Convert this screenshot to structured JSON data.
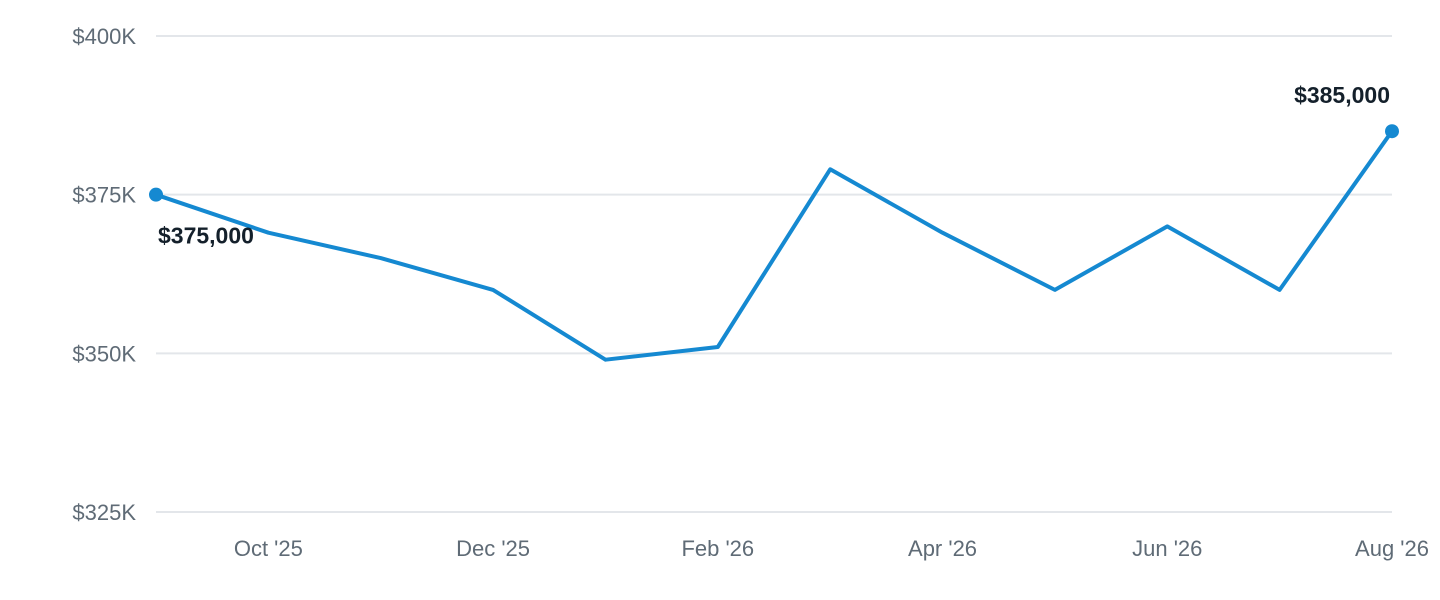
{
  "chart_data": {
    "type": "line",
    "title": "",
    "xlabel": "",
    "ylabel": "",
    "ylim": [
      325000,
      400000
    ],
    "y_ticks": [
      {
        "value": 400000,
        "label": "$400K"
      },
      {
        "value": 375000,
        "label": "$375K"
      },
      {
        "value": 350000,
        "label": "$350K"
      },
      {
        "value": 325000,
        "label": "$325K"
      }
    ],
    "x_ticks": [
      {
        "x": "2025-10",
        "label": "Oct '25"
      },
      {
        "x": "2025-12",
        "label": "Dec '25"
      },
      {
        "x": "2026-02",
        "label": "Feb '26"
      },
      {
        "x": "2026-04",
        "label": "Apr '26"
      },
      {
        "x": "2026-06",
        "label": "Jun '26"
      },
      {
        "x": "2026-08",
        "label": "Aug '26"
      }
    ],
    "grid": true,
    "series": [
      {
        "color": "#1589d1",
        "points": [
          {
            "x": "2025-09",
            "y": 375000
          },
          {
            "x": "2025-10",
            "y": 369000
          },
          {
            "x": "2025-11",
            "y": 365000
          },
          {
            "x": "2025-12",
            "y": 360000
          },
          {
            "x": "2026-01",
            "y": 349000
          },
          {
            "x": "2026-02",
            "y": 351000
          },
          {
            "x": "2026-03",
            "y": 379000
          },
          {
            "x": "2026-04",
            "y": 369000
          },
          {
            "x": "2026-05",
            "y": 360000
          },
          {
            "x": "2026-06",
            "y": 370000
          },
          {
            "x": "2026-07",
            "y": 360000
          },
          {
            "x": "2026-08",
            "y": 385000
          }
        ]
      }
    ],
    "annotations": [
      {
        "x": "2025-09",
        "y": 375000,
        "label": "$375,000",
        "placement": "below-right"
      },
      {
        "x": "2026-08",
        "y": 385000,
        "label": "$385,000",
        "placement": "above-left"
      }
    ]
  }
}
